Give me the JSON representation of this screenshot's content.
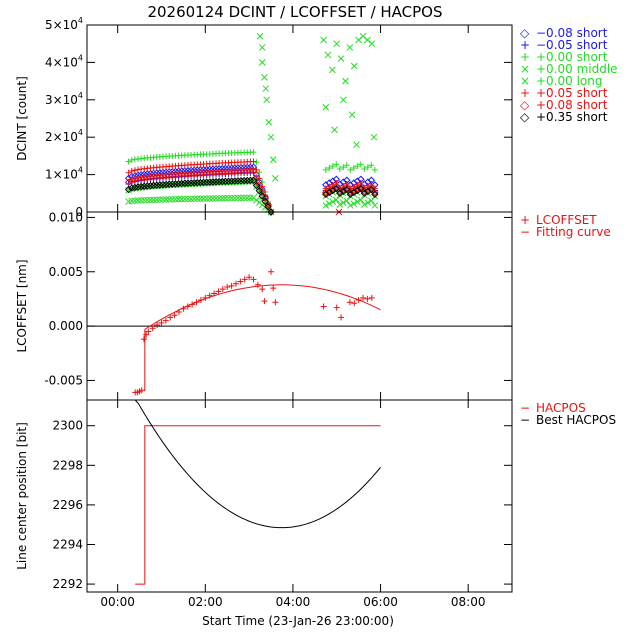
{
  "title": "20260124 DCINT / LCOFFSET / HACPOS",
  "colors": {
    "blue": "#1a1aee",
    "green": "#22dd22",
    "red": "#ee1111",
    "black": "#000000"
  },
  "chart_data": [
    {
      "type": "scatter",
      "ylabel": "DCINT [count]",
      "ylim": [
        0,
        50000
      ],
      "yticks": [
        {
          "v": 0,
          "label": "0"
        },
        {
          "v": 10000,
          "label": "1x10^4"
        },
        {
          "v": 20000,
          "label": "2x10^4"
        },
        {
          "v": 30000,
          "label": "3x10^4"
        },
        {
          "v": 40000,
          "label": "4x10^4"
        },
        {
          "v": 50000,
          "label": "5x10^4"
        }
      ],
      "legend": [
        {
          "symbol": "◇",
          "label": "−0.08 short",
          "color": "#1a1aee"
        },
        {
          "symbol": "+",
          "label": "−0.05 short",
          "color": "#1a1aee"
        },
        {
          "symbol": "+",
          "label": "+0.00 short",
          "color": "#22dd22"
        },
        {
          "symbol": "×",
          "label": "+0.00 middle",
          "color": "#22dd22"
        },
        {
          "symbol": "×",
          "label": "+0.00 long",
          "color": "#22dd22"
        },
        {
          "symbol": "+",
          "label": "+0.05 short",
          "color": "#ee1111"
        },
        {
          "symbol": "◇",
          "label": "+0.08 short",
          "color": "#ee1111"
        },
        {
          "symbol": "◇",
          "label": "+0.35 short",
          "color": "#000000"
        }
      ],
      "series": [
        {
          "label": "−0.08 short",
          "color": "#1a1aee",
          "marker": "diamond",
          "segments": [
            {
              "x": [
                0.25,
                3.1
              ],
              "y": [
                9000,
                12000
              ]
            }
          ],
          "drop_end": 3.5
        },
        {
          "label": "−0.05 short",
          "color": "#1a1aee",
          "marker": "plus",
          "segments": [
            {
              "x": [
                0.25,
                3.1
              ],
              "y": [
                7500,
                10500
              ]
            }
          ],
          "drop_end": 3.5
        },
        {
          "label": "+0.00 short",
          "color": "#22dd22",
          "marker": "plus",
          "segments": [
            {
              "x": [
                0.25,
                3.1
              ],
              "y": [
                13500,
                16000
              ]
            }
          ],
          "drop_end": 3.5
        },
        {
          "label": "+0.00 middle",
          "color": "#22dd22",
          "marker": "x",
          "segments": [
            {
              "x": [
                0.25,
                3.1
              ],
              "y": [
                5800,
                8200
              ]
            }
          ],
          "drop_end": 3.5
        },
        {
          "label": "+0.00 long",
          "color": "#22dd22",
          "marker": "x",
          "segments": [
            {
              "x": [
                0.25,
                3.1
              ],
              "y": [
                2800,
                3800
              ]
            }
          ],
          "drop_end": 3.5
        },
        {
          "label": "+0.05 short",
          "color": "#ee1111",
          "marker": "plus",
          "segments": [
            {
              "x": [
                0.25,
                3.1
              ],
              "y": [
                10500,
                13500
              ]
            }
          ],
          "drop_end": 3.5
        },
        {
          "label": "+0.08 short",
          "color": "#ee1111",
          "marker": "diamond",
          "segments": [
            {
              "x": [
                0.25,
                3.1
              ],
              "y": [
                8000,
                11000
              ]
            }
          ],
          "drop_end": 3.5
        },
        {
          "label": "+0.35 short",
          "color": "#000000",
          "marker": "diamond",
          "segments": [
            {
              "x": [
                0.25,
                3.1
              ],
              "y": [
                6000,
                8500
              ]
            }
          ],
          "drop_end": 3.5
        }
      ],
      "late_levels": [
        {
          "color": "#1a1aee",
          "marker": "diamond",
          "y": 8000
        },
        {
          "color": "#1a1aee",
          "marker": "plus",
          "y": 6500
        },
        {
          "color": "#22dd22",
          "marker": "plus",
          "y": 12000
        },
        {
          "color": "#22dd22",
          "marker": "x",
          "y": 5000
        },
        {
          "color": "#22dd22",
          "marker": "x",
          "y": 2500
        },
        {
          "color": "#ee1111",
          "marker": "plus",
          "y": 7000
        },
        {
          "color": "#ee1111",
          "marker": "diamond",
          "y": 6000
        },
        {
          "color": "#000000",
          "marker": "diamond",
          "y": 5500
        }
      ],
      "scatter_bursts": [
        {
          "x": 3.25,
          "y": 47000,
          "color": "#22dd22"
        },
        {
          "x": 3.3,
          "y": 40000,
          "color": "#22dd22"
        },
        {
          "x": 3.35,
          "y": 36000,
          "color": "#22dd22"
        },
        {
          "x": 3.4,
          "y": 30000,
          "color": "#22dd22"
        },
        {
          "x": 3.45,
          "y": 24000,
          "color": "#22dd22"
        },
        {
          "x": 3.5,
          "y": 20000,
          "color": "#22dd22"
        },
        {
          "x": 3.3,
          "y": 44000,
          "color": "#22dd22"
        },
        {
          "x": 3.38,
          "y": 33000,
          "color": "#22dd22"
        },
        {
          "x": 3.55,
          "y": 14000,
          "color": "#22dd22"
        },
        {
          "x": 3.6,
          "y": 9000,
          "color": "#22dd22"
        },
        {
          "x": 4.7,
          "y": 46000,
          "color": "#22dd22"
        },
        {
          "x": 4.8,
          "y": 42000,
          "color": "#22dd22"
        },
        {
          "x": 4.9,
          "y": 38000,
          "color": "#22dd22"
        },
        {
          "x": 5.0,
          "y": 45000,
          "color": "#22dd22"
        },
        {
          "x": 5.1,
          "y": 41000,
          "color": "#22dd22"
        },
        {
          "x": 5.2,
          "y": 35000,
          "color": "#22dd22"
        },
        {
          "x": 5.3,
          "y": 44000,
          "color": "#22dd22"
        },
        {
          "x": 5.4,
          "y": 39000,
          "color": "#22dd22"
        },
        {
          "x": 5.5,
          "y": 46000,
          "color": "#22dd22"
        },
        {
          "x": 5.6,
          "y": 47000,
          "color": "#22dd22"
        },
        {
          "x": 5.7,
          "y": 46000,
          "color": "#22dd22"
        },
        {
          "x": 5.8,
          "y": 45000,
          "color": "#22dd22"
        },
        {
          "x": 4.75,
          "y": 28000,
          "color": "#22dd22"
        },
        {
          "x": 4.95,
          "y": 22000,
          "color": "#22dd22"
        },
        {
          "x": 5.15,
          "y": 30000,
          "color": "#22dd22"
        },
        {
          "x": 5.35,
          "y": 26000,
          "color": "#22dd22"
        },
        {
          "x": 5.45,
          "y": 18000,
          "color": "#22dd22"
        },
        {
          "x": 5.85,
          "y": 20000,
          "color": "#22dd22"
        },
        {
          "x": 5.05,
          "y": 0,
          "color": "#ee1111"
        }
      ]
    },
    {
      "type": "scatter",
      "ylabel": "LCOFFSET [nm]",
      "ylim": [
        -0.0068,
        0.0105
      ],
      "yticks": [
        {
          "v": -0.005,
          "label": "-0.005"
        },
        {
          "v": 0.0,
          "label": "0.000"
        },
        {
          "v": 0.005,
          "label": "0.005"
        },
        {
          "v": 0.01,
          "label": "0.010"
        }
      ],
      "legend": [
        {
          "symbol": "+",
          "label": "LCOFFSET",
          "color": "#ee1111"
        },
        {
          "symbol": "−",
          "label": "Fitting curve",
          "color": "#ee1111"
        }
      ],
      "points": [
        [
          0.4,
          -0.0061
        ],
        [
          0.45,
          -0.0061
        ],
        [
          0.5,
          -0.006
        ],
        [
          0.55,
          -0.0059
        ],
        [
          0.6,
          -0.0012
        ],
        [
          0.65,
          -0.0008
        ],
        [
          0.7,
          -0.0005
        ],
        [
          0.8,
          -0.0002
        ],
        [
          0.9,
          0.0001
        ],
        [
          1.0,
          0.0003
        ],
        [
          1.1,
          0.0005
        ],
        [
          1.2,
          0.0008
        ],
        [
          1.3,
          0.001
        ],
        [
          1.4,
          0.0013
        ],
        [
          1.5,
          0.0016
        ],
        [
          1.6,
          0.0018
        ],
        [
          1.7,
          0.002
        ],
        [
          1.8,
          0.0022
        ],
        [
          1.9,
          0.0024
        ],
        [
          2.0,
          0.0026
        ],
        [
          2.1,
          0.0028
        ],
        [
          2.2,
          0.003
        ],
        [
          2.3,
          0.0032
        ],
        [
          2.4,
          0.0034
        ],
        [
          2.5,
          0.0036
        ],
        [
          2.6,
          0.0037
        ],
        [
          2.7,
          0.0039
        ],
        [
          2.8,
          0.0041
        ],
        [
          2.9,
          0.0043
        ],
        [
          3.0,
          0.0045
        ],
        [
          3.1,
          0.0043
        ],
        [
          3.2,
          0.0038
        ],
        [
          3.3,
          0.0034
        ],
        [
          3.35,
          0.0023
        ],
        [
          3.5,
          0.005
        ],
        [
          3.55,
          0.0035
        ],
        [
          3.6,
          0.0022
        ],
        [
          4.7,
          0.0018
        ],
        [
          5.0,
          0.0017
        ],
        [
          5.1,
          0.0008
        ],
        [
          5.3,
          0.0022
        ],
        [
          5.4,
          0.0021
        ],
        [
          5.5,
          0.0024
        ],
        [
          5.6,
          0.0026
        ],
        [
          5.7,
          0.0025
        ],
        [
          5.8,
          0.0026
        ]
      ],
      "fit": {
        "x0": 0.62,
        "y0": -0.0003,
        "x_peak": 3.75,
        "y_peak": 0.0038,
        "x_end": 6.0,
        "y_end": 0.0015
      }
    },
    {
      "type": "line",
      "ylabel": "Line center position [bit]",
      "ylim": [
        2291.6,
        2301.3
      ],
      "yticks": [
        {
          "v": 2292,
          "label": "2292"
        },
        {
          "v": 2294,
          "label": "2294"
        },
        {
          "v": 2296,
          "label": "2296"
        },
        {
          "v": 2298,
          "label": "2298"
        },
        {
          "v": 2300,
          "label": "2300"
        }
      ],
      "legend": [
        {
          "symbol": "−",
          "label": "HACPOS",
          "color": "#ee1111"
        },
        {
          "symbol": "−",
          "label": "Best HACPOS",
          "color": "#000000"
        }
      ],
      "hacpos": {
        "x": [
          0.4,
          0.62,
          0.62,
          6.0
        ],
        "y": [
          2292,
          2292,
          2300,
          2300
        ]
      },
      "best_hacpos": {
        "x_start": 0.4,
        "y_start": 2301.4,
        "x_min": 3.75,
        "y_min": 2294.85,
        "x_end": 6.0,
        "y_end": 2297.9
      }
    }
  ],
  "xaxis": {
    "xlabel": "Start Time (23-Jan-26 23:00:00)",
    "xlim": [
      -0.7,
      9.0
    ],
    "ticks": [
      {
        "v": 0,
        "label": "00:00"
      },
      {
        "v": 2,
        "label": "02:00"
      },
      {
        "v": 4,
        "label": "04:00"
      },
      {
        "v": 6,
        "label": "06:00"
      },
      {
        "v": 8,
        "label": "08:00"
      }
    ]
  }
}
